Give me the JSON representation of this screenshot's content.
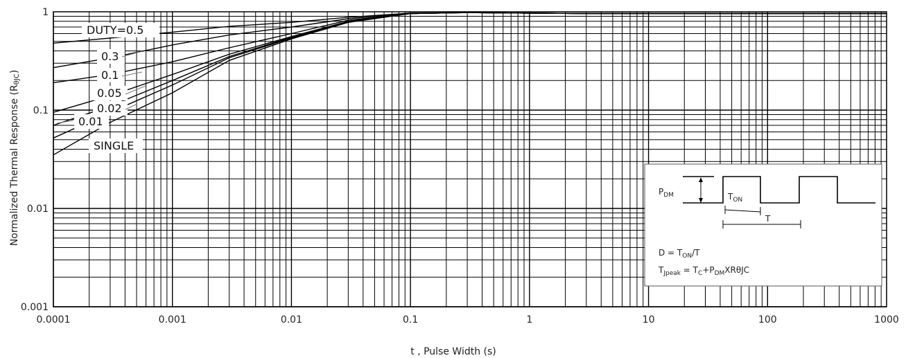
{
  "chart_data": {
    "type": "line",
    "title": "",
    "xlabel": "t , Pulse Width (s)",
    "ylabel": "Normalized Thermal Response (R",
    "ylabel_sub": "θJC",
    "ylabel_close": ")",
    "xscale": "log",
    "yscale": "log",
    "xlim": [
      0.0001,
      1000
    ],
    "ylim": [
      0.001,
      1
    ],
    "grid": "on",
    "x_tick_labels": [
      "0.0001",
      "0.001",
      "0.01",
      "0.1",
      "1",
      "10",
      "100",
      "1000"
    ],
    "y_tick_labels": [
      "0.001",
      "0.01",
      "0.1",
      "1"
    ],
    "x_ticks": [
      0.0001,
      0.001,
      0.01,
      0.1,
      1,
      10,
      100,
      1000
    ],
    "y_ticks": [
      0.001,
      0.01,
      0.1,
      1
    ],
    "x": [
      0.0001,
      0.0003,
      0.001,
      0.003,
      0.01,
      0.03,
      0.1,
      0.3,
      1,
      3,
      10,
      30,
      100,
      300,
      1000
    ],
    "series": [
      {
        "name": "DUTY=0.5",
        "values": [
          0.48,
          0.54,
          0.62,
          0.71,
          0.78,
          0.88,
          0.97,
          0.98,
          0.97,
          0.96,
          0.96,
          0.96,
          0.96,
          0.96,
          0.96
        ]
      },
      {
        "name": "0.3",
        "values": [
          0.27,
          0.34,
          0.46,
          0.58,
          0.7,
          0.85,
          0.97,
          0.98,
          0.97,
          0.96,
          0.96,
          0.96,
          0.96,
          0.96,
          0.96
        ]
      },
      {
        "name": "0.1",
        "values": [
          0.19,
          0.23,
          0.31,
          0.43,
          0.6,
          0.82,
          0.96,
          0.98,
          0.97,
          0.96,
          0.96,
          0.96,
          0.96,
          0.96,
          0.96
        ]
      },
      {
        "name": "0.05",
        "values": [
          0.095,
          0.14,
          0.23,
          0.37,
          0.56,
          0.8,
          0.96,
          0.98,
          0.97,
          0.96,
          0.96,
          0.96,
          0.96,
          0.96,
          0.96
        ]
      },
      {
        "name": "0.02",
        "values": [
          0.07,
          0.11,
          0.2,
          0.35,
          0.55,
          0.79,
          0.96,
          0.98,
          0.97,
          0.96,
          0.96,
          0.96,
          0.96,
          0.96,
          0.96
        ]
      },
      {
        "name": "0.01",
        "values": [
          0.052,
          0.095,
          0.18,
          0.34,
          0.54,
          0.79,
          0.96,
          0.98,
          0.97,
          0.96,
          0.96,
          0.96,
          0.96,
          0.96,
          0.96
        ]
      },
      {
        "name": "SINGLE",
        "values": [
          0.035,
          0.075,
          0.15,
          0.32,
          0.53,
          0.78,
          0.96,
          0.98,
          0.97,
          0.96,
          0.96,
          0.96,
          0.96,
          0.96,
          0.96
        ]
      }
    ],
    "curve_labels": [
      "DUTY=0.5",
      "0.3",
      "0.1",
      "0.05",
      "0.02",
      "0.01",
      "SINGLE"
    ],
    "inset": {
      "pdm_label": "P",
      "pdm_sub": "DM",
      "ton_label": "T",
      "ton_sub": "ON",
      "t_label": "T",
      "duty_formula_prefix": "D = T",
      "duty_formula_sub": "ON",
      "duty_formula_suffix": "/T",
      "tj_prefix": "T",
      "tj_sub": "Jpeak",
      "tj_eq": " = T",
      "tj_c_sub": "C",
      "tj_plus": "+P",
      "tj_pdm_sub": "DM",
      "tj_rest": "XRθJC"
    }
  }
}
